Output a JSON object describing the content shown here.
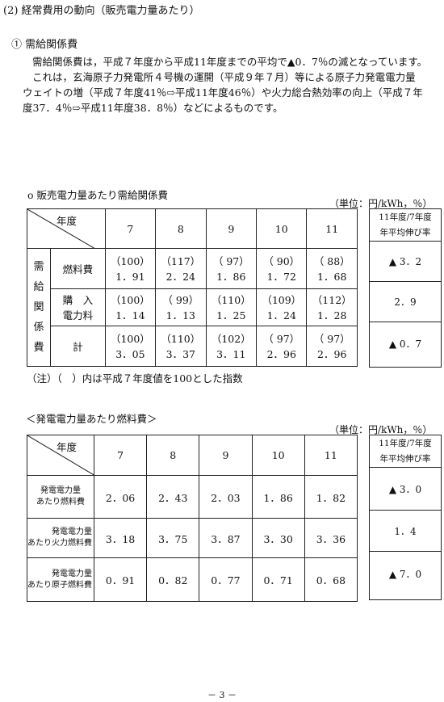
{
  "heading": "(2)  経常費用の動向（販売電力量あたり）",
  "subheading": "①  需給関係費",
  "paragraph": {
    "line1": "需給関係費は，平成７年度から平成11年度までの平均で▲0．7％の減となっています。",
    "line2": "これは，玄海原子力発電所４号機の運開（平成９年７月）等による原子力発電電力量",
    "line3": "ウェイトの増（平成７年度41％⇨平成11年度46％）や火力総合熱効率の向上（平成７年",
    "line4": "度37．4％⇨平成11年度38．8％）などによるものです。"
  },
  "table1": {
    "caption": "o   販売電力量あたり需給関係費",
    "unit": "（単位：円/kWh，％）",
    "corner_label": "年度",
    "years": [
      "7",
      "8",
      "9",
      "10",
      "11"
    ],
    "group_label": [
      "需",
      "給",
      "関",
      "係",
      "費"
    ],
    "rows": [
      {
        "label": "燃料費",
        "index": [
          "（100）",
          "（117）",
          "（ 97）",
          "（ 90）",
          "（ 88）"
        ],
        "values": [
          "1．91",
          "2．24",
          "1．86",
          "1．72",
          "1．68"
        ]
      },
      {
        "label_line1": "購　入",
        "label_line2": "電力料",
        "index": [
          "（100）",
          "（ 99）",
          "（110）",
          "（109）",
          "（112）"
        ],
        "values": [
          "1．14",
          "1．13",
          "1．25",
          "1．24",
          "1．28"
        ]
      },
      {
        "label": "計",
        "index": [
          "（100）",
          "（110）",
          "（102）",
          "（ 97）",
          "（ 97）"
        ],
        "values": [
          "3．05",
          "3．37",
          "3．11",
          "2．96",
          "2．96"
        ]
      }
    ],
    "rate_header_line1": "11年度/7年度",
    "rate_header_line2": "年平均伸び率",
    "rates": [
      "▲ 3．2",
      "2．9",
      "▲ 0．7"
    ],
    "note": "（注）（　）内は平成７年度値を100とした指数"
  },
  "table2": {
    "caption": "＜発電電力量あたり燃料費＞",
    "unit": "（単位：円/kWh，％）",
    "corner_label": "年度",
    "years": [
      "7",
      "8",
      "9",
      "10",
      "11"
    ],
    "rows": [
      {
        "label_line1": "発電電力量",
        "label_line2": "あたり燃料費",
        "values": [
          "2．06",
          "2．43",
          "2．03",
          "1．86",
          "1．82"
        ]
      },
      {
        "label_line1": "発電電力量",
        "label_line2": "あたり火力燃料費",
        "values": [
          "3．18",
          "3．75",
          "3．87",
          "3．30",
          "3．36"
        ]
      },
      {
        "label_line1": "発電電力量",
        "label_line2": "あたり原子燃料費",
        "values": [
          "0．91",
          "0．82",
          "0．77",
          "0．71",
          "0．68"
        ]
      }
    ],
    "rate_header_line1": "11年度/7年度",
    "rate_header_line2": "年平均伸び率",
    "rates": [
      "▲ 3．0",
      "1．4",
      "▲ 7．0"
    ]
  },
  "page_number": "－ 3 －"
}
